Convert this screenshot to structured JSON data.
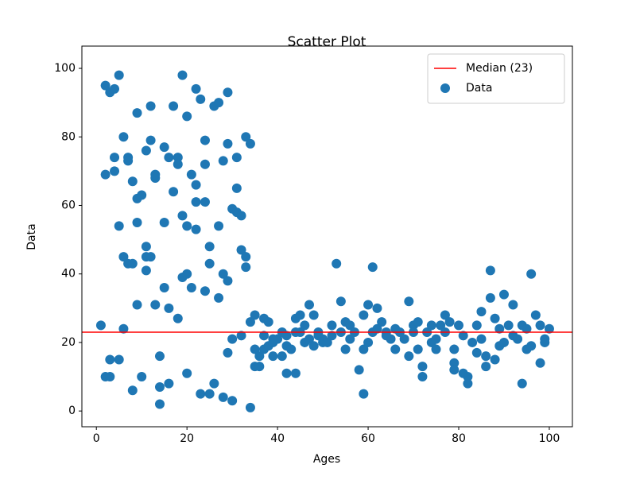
{
  "chart_data": {
    "type": "scatter",
    "title": "Scatter Plot",
    "x_label": "Ages",
    "y_label": "Data",
    "xlim": [
      -3.2,
      105.1
    ],
    "ylim": [
      -4.6,
      106.5
    ],
    "xticks": [
      0,
      20,
      40,
      60,
      80,
      100
    ],
    "yticks": [
      0,
      20,
      40,
      60,
      80,
      100
    ],
    "legend": "upper right",
    "hlines": [
      {
        "name": "Median (23)",
        "value": 23,
        "color": "#ff0000"
      }
    ],
    "series": [
      {
        "name": "Data",
        "color": "#1f77b4",
        "x": [
          1,
          2,
          2,
          3,
          4,
          3,
          2,
          3,
          5,
          4,
          4,
          5,
          6,
          5,
          6,
          6,
          7,
          7,
          7,
          8,
          8,
          8,
          9,
          9,
          9,
          9,
          10,
          10,
          11,
          11,
          11,
          11,
          12,
          12,
          12,
          13,
          13,
          13,
          14,
          14,
          14,
          15,
          15,
          15,
          16,
          16,
          16,
          17,
          17,
          18,
          18,
          18,
          19,
          19,
          19,
          20,
          20,
          20,
          20,
          21,
          21,
          22,
          22,
          22,
          22,
          23,
          23,
          24,
          24,
          24,
          24,
          25,
          25,
          25,
          26,
          26,
          27,
          27,
          27,
          28,
          28,
          28,
          29,
          29,
          29,
          29,
          30,
          30,
          30,
          31,
          31,
          31,
          32,
          32,
          32,
          33,
          33,
          33,
          34,
          34,
          34,
          35,
          35,
          35,
          36,
          36,
          37,
          37,
          37,
          38,
          38,
          39,
          39,
          39,
          40,
          41,
          41,
          42,
          42,
          42,
          43,
          44,
          44,
          44,
          45,
          45,
          46,
          46,
          47,
          47,
          48,
          48,
          49,
          49,
          50,
          50,
          51,
          52,
          52,
          53,
          54,
          54,
          55,
          55,
          56,
          56,
          57,
          58,
          59,
          59,
          59,
          60,
          60,
          61,
          61,
          62,
          62,
          63,
          64,
          64,
          65,
          66,
          66,
          67,
          68,
          69,
          69,
          70,
          70,
          71,
          71,
          72,
          72,
          73,
          74,
          74,
          75,
          75,
          76,
          77,
          77,
          78,
          79,
          79,
          79,
          80,
          81,
          81,
          82,
          82,
          83,
          84,
          84,
          85,
          85,
          86,
          86,
          87,
          87,
          88,
          88,
          89,
          89,
          90,
          90,
          91,
          92,
          92,
          93,
          94,
          94,
          95,
          95,
          96,
          96,
          97,
          98,
          98,
          99,
          99,
          100
        ],
        "values": [
          25,
          69,
          95,
          93,
          94,
          15,
          10,
          10,
          15,
          74,
          70,
          98,
          80,
          54,
          45,
          24,
          43,
          74,
          73,
          6,
          67,
          43,
          87,
          55,
          31,
          62,
          10,
          63,
          76,
          48,
          45,
          41,
          79,
          45,
          89,
          68,
          31,
          69,
          16,
          7,
          2,
          36,
          77,
          55,
          74,
          8,
          30,
          64,
          89,
          27,
          74,
          72,
          98,
          57,
          39,
          40,
          86,
          54,
          11,
          69,
          36,
          66,
          53,
          94,
          61,
          5,
          91,
          72,
          61,
          35,
          79,
          43,
          48,
          5,
          8,
          89,
          33,
          90,
          54,
          4,
          40,
          73,
          78,
          93,
          38,
          17,
          59,
          21,
          3,
          58,
          65,
          74,
          57,
          47,
          22,
          45,
          42,
          80,
          78,
          1,
          26,
          28,
          18,
          13,
          13,
          16,
          27,
          22,
          18,
          19,
          26,
          16,
          21,
          20,
          21,
          16,
          23,
          11,
          19,
          22,
          18,
          23,
          27,
          11,
          28,
          23,
          20,
          25,
          21,
          31,
          19,
          28,
          23,
          22,
          20,
          21,
          20,
          22,
          25,
          43,
          32,
          23,
          18,
          26,
          25,
          21,
          23,
          12,
          5,
          18,
          28,
          20,
          31,
          23,
          42,
          24,
          30,
          26,
          22,
          23,
          21,
          24,
          18,
          23,
          21,
          32,
          16,
          25,
          23,
          18,
          26,
          13,
          10,
          23,
          20,
          25,
          18,
          21,
          25,
          28,
          23,
          26,
          14,
          12,
          18,
          25,
          22,
          11,
          8,
          10,
          20,
          25,
          17,
          29,
          21,
          16,
          13,
          41,
          33,
          27,
          15,
          19,
          24,
          20,
          34,
          25,
          22,
          31,
          21,
          25,
          8,
          18,
          24,
          19,
          40,
          28,
          25,
          14,
          21,
          20,
          24
        ]
      }
    ]
  }
}
